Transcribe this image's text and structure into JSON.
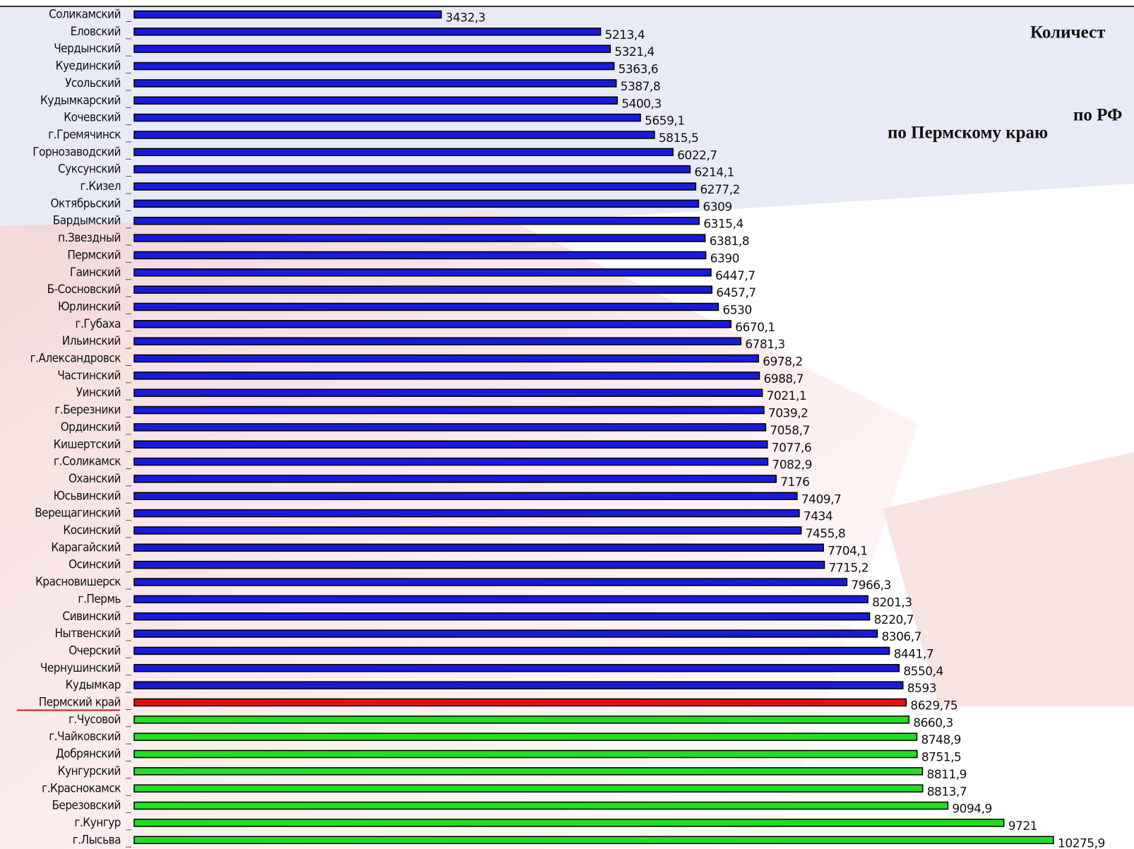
{
  "chart_data": {
    "type": "hbar",
    "title_lines": [
      "Количест",
      "по РФ",
      "по Пермскому краю"
    ],
    "categories": [
      "Соликамский",
      "Еловский",
      "Чердынский",
      "Куединский",
      "Усольский",
      "Кудымкарский",
      "Кочевский",
      "г.Гремячинск",
      "Горнозаводский",
      "Суксунский",
      "г.Кизел",
      "Октябрьский",
      "Бардымский",
      "п.Звездный",
      "Пермский",
      "Гаинский",
      "Б-Сосновский",
      "Юрлинский",
      "г.Губаха",
      "Ильинский",
      "г.Александровск",
      "Частинский",
      "Уинский",
      "г.Березники",
      "Ординский",
      "Кишертский",
      "г.Соликамск",
      "Оханский",
      "Юсьвинский",
      "Верещагинский",
      "Косинский",
      "Карагайский",
      "Осинский",
      "Красновишерск",
      "г.Пермь",
      "Сивинский",
      "Нытвенский",
      "Очерский",
      "Чернушинский",
      "Кудымкар",
      "Пермский край",
      "г.Чусовой",
      "г.Чайковский",
      "Добрянский",
      "Кунгурский",
      "г.Краснокамск",
      "Березовский",
      "г.Кунгур",
      "г.Лысьва"
    ],
    "values": [
      3432.3,
      5213.4,
      5321.4,
      5363.6,
      5387.8,
      5400.3,
      5659.1,
      5815.5,
      6022.7,
      6214.1,
      6277.2,
      6309,
      6315.4,
      6381.8,
      6390,
      6447.7,
      6457.7,
      6530,
      6670.1,
      6781.3,
      6978.2,
      6988.7,
      7021.1,
      7039.2,
      7058.7,
      7077.6,
      7082.9,
      7176,
      7409.7,
      7434,
      7455.8,
      7704.1,
      7715.2,
      7966.3,
      8201.3,
      8220.7,
      8306.7,
      8441.7,
      8550.4,
      8593,
      8629.75,
      8660.3,
      8748.9,
      8751.5,
      8811.9,
      8813.7,
      9094.9,
      9721,
      10275.9
    ],
    "value_labels": [
      "3432,3",
      "5213,4",
      "5321,4",
      "5363,6",
      "5387,8",
      "5400,3",
      "5659,1",
      "5815,5",
      "6022,7",
      "6214,1",
      "6277,2",
      "6309",
      "6315,4",
      "6381,8",
      "6390",
      "6447,7",
      "6457,7",
      "6530",
      "6670,1",
      "6781,3",
      "6978,2",
      "6988,7",
      "7021,1",
      "7039,2",
      "7058,7",
      "7077,6",
      "7082,9",
      "7176",
      "7409,7",
      "7434",
      "7455,8",
      "7704,1",
      "7715,2",
      "7966,3",
      "8201,3",
      "8220,7",
      "8306,7",
      "8441,7",
      "8550,4",
      "8593",
      "8629,75",
      "8660,3",
      "8748,9",
      "8751,5",
      "8811,9",
      "8813,7",
      "9094,9",
      "9721",
      "10275,9"
    ],
    "colors": [
      "#1a1adc",
      "#1a1adc",
      "#1a1adc",
      "#1a1adc",
      "#1a1adc",
      "#1a1adc",
      "#1a1adc",
      "#1a1adc",
      "#1a1adc",
      "#1a1adc",
      "#1a1adc",
      "#1a1adc",
      "#1a1adc",
      "#1a1adc",
      "#1a1adc",
      "#1a1adc",
      "#1a1adc",
      "#1a1adc",
      "#1a1adc",
      "#1a1adc",
      "#1a1adc",
      "#1a1adc",
      "#1a1adc",
      "#1a1adc",
      "#1a1adc",
      "#1a1adc",
      "#1a1adc",
      "#1a1adc",
      "#1a1adc",
      "#1a1adc",
      "#1a1adc",
      "#1a1adc",
      "#1a1adc",
      "#1a1adc",
      "#1a1adc",
      "#1a1adc",
      "#1a1adc",
      "#1a1adc",
      "#1a1adc",
      "#1a1adc",
      "#e01010",
      "#22dd22",
      "#22dd22",
      "#22dd22",
      "#22dd22",
      "#22dd22",
      "#22dd22",
      "#22dd22",
      "#22dd22"
    ]
  }
}
